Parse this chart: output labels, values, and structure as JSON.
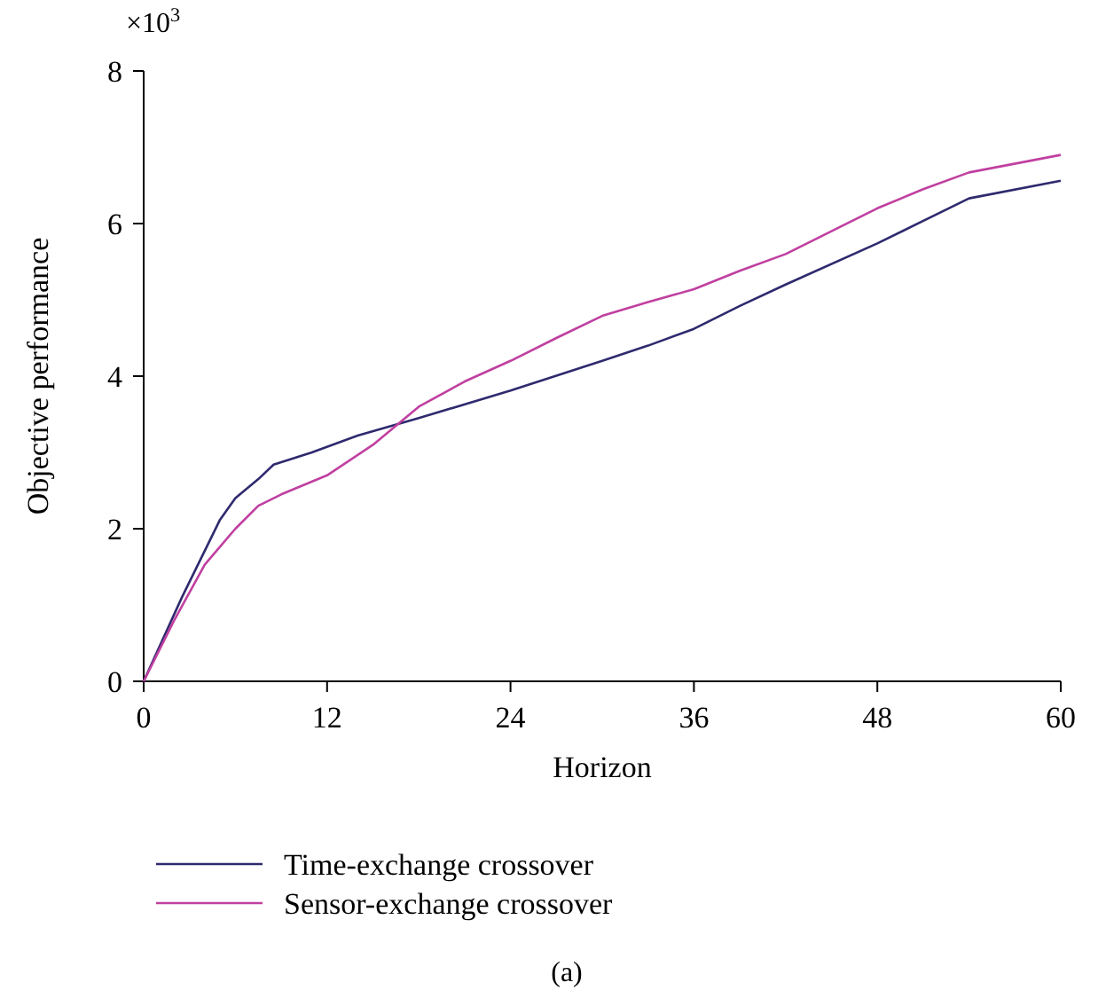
{
  "chart_data": {
    "type": "line",
    "xlabel": "Horizon",
    "ylabel": "Objective performance",
    "annotations": [
      "×10$^{3}$",
      "(a)"
    ],
    "xlim": [
      0,
      60
    ],
    "xticks": [
      0,
      12,
      24,
      36,
      48,
      60
    ],
    "ylim": [
      0,
      8
    ],
    "yticks": [
      0,
      2,
      4,
      6,
      8
    ],
    "grid": false,
    "legend": "bottom",
    "marker": "none",
    "line_style": "solid",
    "series": [
      {
        "name": "Time-exchange crossover",
        "color": "#2e2a6e",
        "x": [
          0,
          2.5,
          5,
          6,
          7.5,
          8.5,
          11,
          14,
          18,
          24,
          30,
          33,
          36,
          39,
          42,
          48,
          54,
          60
        ],
        "values": [
          0,
          1.1,
          2.12,
          2.4,
          2.65,
          2.84,
          3.0,
          3.22,
          3.45,
          3.81,
          4.2,
          4.4,
          4.62,
          4.92,
          5.2,
          5.74,
          6.33,
          6.56
        ]
      },
      {
        "name": "Sensor-exchange crossover",
        "color": "#c040a0",
        "x": [
          0,
          2,
          4,
          6,
          7.5,
          9,
          12,
          15,
          18,
          21,
          24,
          27,
          30,
          33,
          36,
          39,
          42,
          45,
          48,
          51,
          54,
          60
        ],
        "values": [
          0,
          0.8,
          1.53,
          2.0,
          2.3,
          2.45,
          2.7,
          3.1,
          3.6,
          3.93,
          4.2,
          4.5,
          4.79,
          4.97,
          5.14,
          5.38,
          5.6,
          5.9,
          6.2,
          6.45,
          6.67,
          6.9
        ]
      }
    ]
  }
}
